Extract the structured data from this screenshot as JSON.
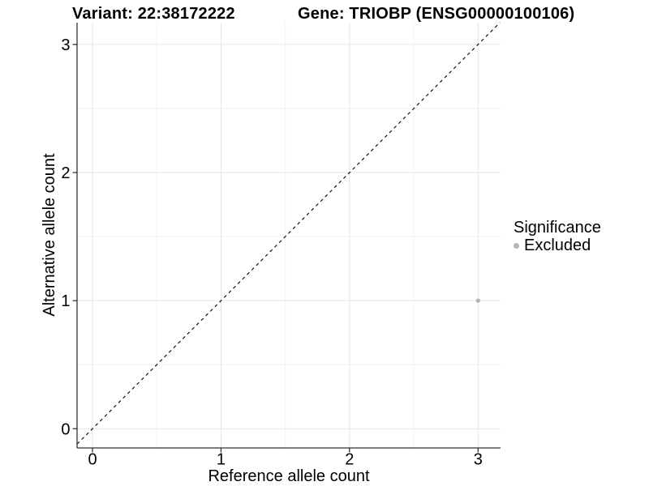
{
  "chart_data": {
    "type": "scatter",
    "title_variant": "Variant: 22:38172222",
    "title_gene": "Gene: TRIOBP (ENSG00000100106)",
    "xlabel": "Reference allele count",
    "ylabel": "Alternative allele count",
    "xlim": [
      -0.12,
      3.175
    ],
    "ylim": [
      -0.15,
      3.17
    ],
    "xticks": [
      0,
      1,
      2,
      3
    ],
    "yticks": [
      0,
      1,
      2,
      3
    ],
    "xticks_minor": [
      0.5,
      1.5,
      2.5
    ],
    "yticks_minor": [
      0.5,
      1.5,
      2.5
    ],
    "grid": "major and minor, light gray, white panel background",
    "points": [
      {
        "x": 3,
        "y": 1,
        "significance": "Excluded"
      }
    ],
    "identity_line": {
      "style": "dashed",
      "color": "#000000",
      "from": -0.12,
      "to": 3.17
    },
    "legend": {
      "title": "Significance",
      "position": "right",
      "entries": [
        {
          "label": "Excluded",
          "color": "#b4b4b4",
          "marker": "circle"
        }
      ]
    },
    "style": {
      "point_color": "#b4b4b4",
      "point_radius": 2.7,
      "grid_major_color": "#e5e5e5",
      "grid_minor_color": "#f2f2f2",
      "axis_color": "#333333",
      "tick_label_size": 20,
      "text_color": "#000000"
    }
  }
}
